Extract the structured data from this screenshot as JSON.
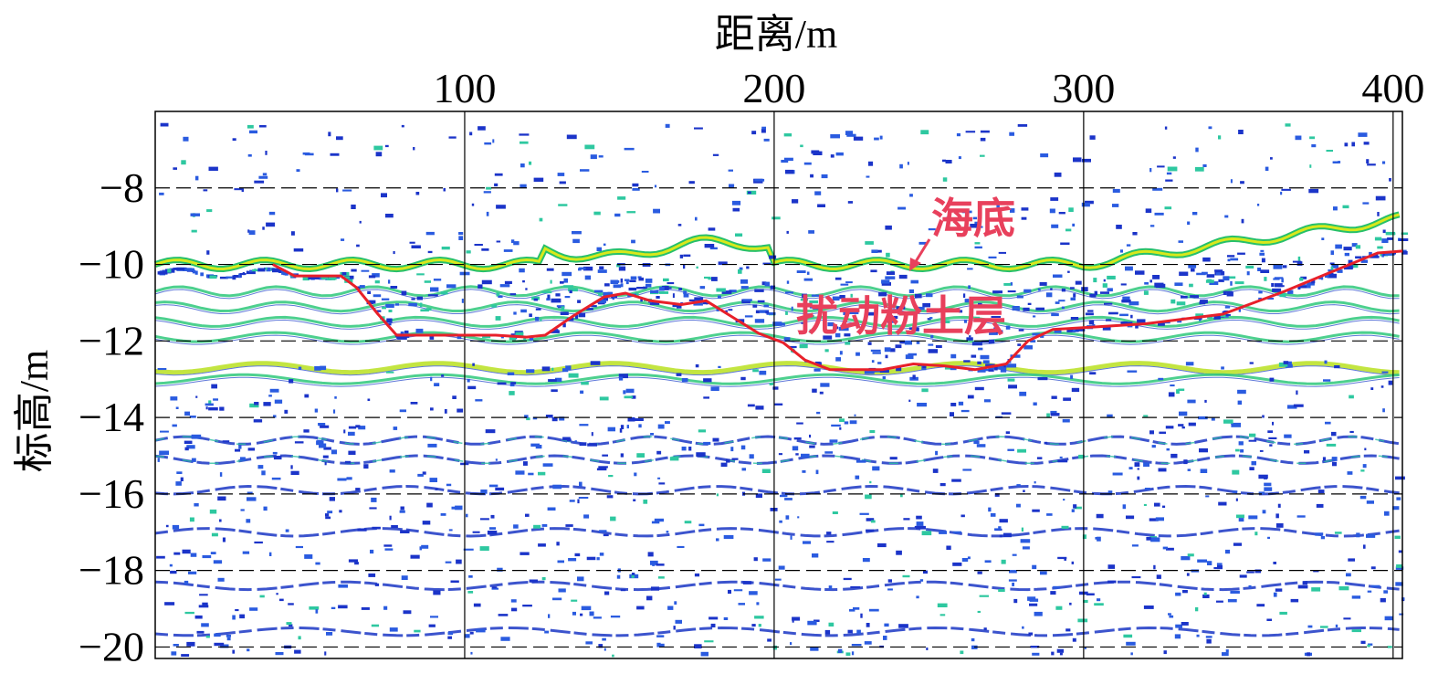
{
  "chart_data": {
    "type": "line",
    "xlabel": "距离/m",
    "ylabel": "标高/m",
    "xlim": [
      0,
      403
    ],
    "ylim": [
      -20.3,
      -6
    ],
    "x_ticks": [
      {
        "value": 100,
        "label": "100"
      },
      {
        "value": 200,
        "label": "200"
      },
      {
        "value": 300,
        "label": "300"
      },
      {
        "value": 400,
        "label": "400"
      }
    ],
    "y_ticks": [
      {
        "value": -8,
        "label": "−8"
      },
      {
        "value": -10,
        "label": "−10"
      },
      {
        "value": -12,
        "label": "−12"
      },
      {
        "value": -14,
        "label": "−14"
      },
      {
        "value": -16,
        "label": "−16"
      },
      {
        "value": -18,
        "label": "−18"
      },
      {
        "value": -20,
        "label": "−20"
      }
    ],
    "grid": {
      "vertical": "solid",
      "horizontal": "dashed"
    },
    "background": "sub-bottom profile (blue-green-yellow reflection intensity)",
    "series": [
      {
        "name": "",
        "color": "#e8202a",
        "x": [
          38,
          45,
          52,
          60,
          65,
          72,
          78,
          85,
          95,
          110,
          120,
          126,
          135,
          145,
          152,
          160,
          170,
          178,
          186,
          195,
          203,
          210,
          218,
          226,
          235,
          245,
          255,
          265,
          275,
          282,
          290,
          300,
          320,
          345,
          365,
          380,
          395,
          403
        ],
        "y": [
          -10.0,
          -10.3,
          -10.3,
          -10.3,
          -10.6,
          -11.3,
          -11.85,
          -11.85,
          -11.85,
          -11.85,
          -11.9,
          -11.85,
          -11.35,
          -10.85,
          -10.75,
          -10.95,
          -11.05,
          -10.95,
          -11.35,
          -11.8,
          -12.05,
          -12.5,
          -12.75,
          -12.75,
          -12.75,
          -12.6,
          -12.65,
          -12.75,
          -12.6,
          -12.0,
          -11.7,
          -11.65,
          -11.55,
          -11.3,
          -10.7,
          -10.2,
          -9.7,
          -9.65
        ]
      }
    ],
    "annotations": [
      {
        "text": "海底",
        "color": "#e8405c"
      },
      {
        "text": "扰动粉土层",
        "color": "#e8405c"
      }
    ]
  }
}
